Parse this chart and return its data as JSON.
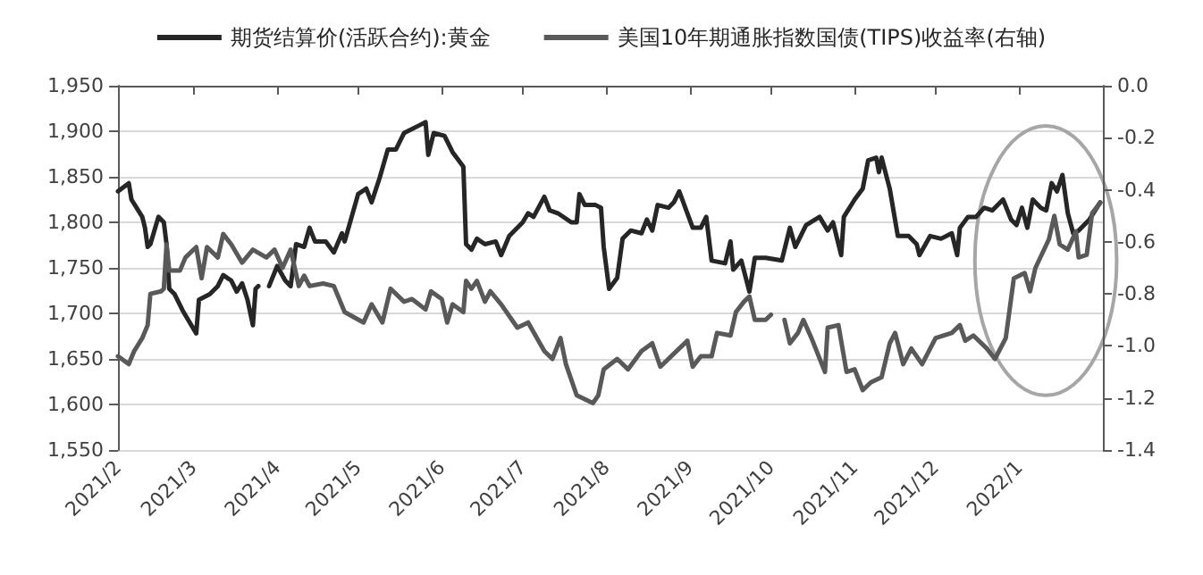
{
  "chart_data": {
    "type": "line",
    "series": [
      {
        "name": "期货结算价(活跃合约):黄金",
        "color": "#262626",
        "x": [
          "2021-02-01",
          "2021-02-05",
          "2021-02-06",
          "2021-02-10",
          "2021-02-11",
          "2021-02-12",
          "2021-02-13",
          "2021-02-16",
          "2021-02-18",
          "2021-02-19",
          "2021-02-20",
          "2021-02-22",
          "2021-02-25",
          "2021-03-02",
          "2021-03-03",
          "2021-03-07",
          "2021-03-10",
          "2021-03-12",
          "2021-03-15",
          "2021-03-17",
          "2021-03-19",
          "2021-03-21",
          "2021-03-23",
          "2021-03-24",
          "2021-03-25",
          "2021-03-27",
          "2021-03-29",
          "2021-04-01",
          "2021-04-04",
          "2021-04-06",
          "2021-04-08",
          "2021-04-11",
          "2021-04-13",
          "2021-04-15",
          "2021-04-19",
          "2021-04-22",
          "2021-04-25",
          "2021-04-26",
          "2021-05-01",
          "2021-05-04",
          "2021-05-06",
          "2021-05-09",
          "2021-05-12",
          "2021-05-15",
          "2021-05-18",
          "2021-05-24",
          "2021-05-26",
          "2021-05-27",
          "2021-05-29",
          "2021-06-02",
          "2021-06-05",
          "2021-06-09",
          "2021-06-10",
          "2021-06-12",
          "2021-06-14",
          "2021-06-17",
          "2021-06-21",
          "2021-06-23",
          "2021-06-26",
          "2021-07-01",
          "2021-07-03",
          "2021-07-05",
          "2021-07-09",
          "2021-07-11",
          "2021-07-14",
          "2021-07-19",
          "2021-07-21",
          "2021-07-22",
          "2021-07-24",
          "2021-07-28",
          "2021-07-30",
          "2021-07-31",
          "2021-08-02",
          "2021-08-05",
          "2021-08-07",
          "2021-08-10",
          "2021-08-14",
          "2021-08-16",
          "2021-08-18",
          "2021-08-20",
          "2021-08-24",
          "2021-08-26",
          "2021-08-28",
          "2021-08-31",
          "2021-09-02",
          "2021-09-05",
          "2021-09-07",
          "2021-09-09",
          "2021-09-14",
          "2021-09-16",
          "2021-09-17",
          "2021-09-20",
          "2021-09-23",
          "2021-09-25",
          "2021-09-29",
          "2021-10-05",
          "2021-10-08",
          "2021-10-10",
          "2021-10-14",
          "2021-10-19",
          "2021-10-22",
          "2021-10-24",
          "2021-10-27",
          "2021-10-28",
          "2021-11-01",
          "2021-11-04",
          "2021-11-06",
          "2021-11-09",
          "2021-11-10",
          "2021-11-11",
          "2021-11-14",
          "2021-11-17",
          "2021-11-21",
          "2021-11-24",
          "2021-11-25",
          "2021-11-29",
          "2021-12-03",
          "2021-12-07",
          "2021-12-09",
          "2021-12-10",
          "2021-12-13",
          "2021-12-16",
          "2021-12-19",
          "2021-12-22",
          "2021-12-26",
          "2021-12-29",
          "2021-12-31",
          "2022-01-02",
          "2022-01-04",
          "2022-01-06",
          "2022-01-09",
          "2022-01-11",
          "2022-01-13",
          "2022-01-15",
          "2022-01-17",
          "2022-01-19",
          "2022-01-21",
          "2022-01-23",
          "2022-01-27",
          "2022-01-31"
        ],
        "values": [
          1834,
          1843,
          1825,
          1806,
          1794,
          1773,
          1776,
          1806,
          1800,
          1776,
          1727,
          1721,
          1703,
          1678,
          1715,
          1721,
          1730,
          1742,
          1736,
          1724,
          1733,
          1715,
          1687,
          1727,
          1730,
          null,
          1730,
          1752,
          1736,
          1730,
          1776,
          1773,
          1794,
          1779,
          1779,
          1767,
          1788,
          1779,
          1831,
          1837,
          1822,
          1849,
          1880,
          1880,
          1898,
          1907,
          1910,
          1874,
          1898,
          1895,
          1877,
          1861,
          1776,
          1770,
          1782,
          1776,
          1779,
          1764,
          1785,
          1800,
          1810,
          1806,
          1828,
          1813,
          1810,
          1800,
          1800,
          1831,
          1819,
          1819,
          1816,
          1773,
          1727,
          1739,
          1782,
          1791,
          1788,
          1803,
          1791,
          1819,
          1816,
          1822,
          1834,
          1810,
          1794,
          1794,
          1806,
          1758,
          1755,
          1779,
          1748,
          1758,
          1724,
          1761,
          1761,
          1758,
          1794,
          1773,
          1797,
          1806,
          1791,
          1800,
          1764,
          1806,
          1825,
          1837,
          1868,
          1871,
          1855,
          1871,
          1837,
          1785,
          1785,
          1776,
          1764,
          1785,
          1782,
          1788,
          1764,
          1794,
          1806,
          1806,
          1816,
          1813,
          1825,
          1803,
          1797,
          1816,
          1794,
          1825,
          1816,
          1813,
          1843,
          1834,
          1852,
          1810,
          1788,
          1791,
          1803,
          1822
        ]
      },
      {
        "name": "美国10年期通胀指数国债(TIPS)收益率(右轴)",
        "color": "#595959",
        "axis": "y2",
        "x": [
          "2021-02-01",
          "2021-02-05",
          "2021-02-07",
          "2021-02-10",
          "2021-02-12",
          "2021-02-13",
          "2021-02-17",
          "2021-02-18",
          "2021-02-19",
          "2021-02-20",
          "2021-02-24",
          "2021-02-26",
          "2021-03-02",
          "2021-03-04",
          "2021-03-06",
          "2021-03-10",
          "2021-03-12",
          "2021-03-15",
          "2021-03-19",
          "2021-03-23",
          "2021-03-28",
          "2021-03-31",
          "2021-04-03",
          "2021-04-06",
          "2021-04-09",
          "2021-04-11",
          "2021-04-13",
          "2021-04-18",
          "2021-04-22",
          "2021-04-26",
          "2021-05-03",
          "2021-05-06",
          "2021-05-10",
          "2021-05-13",
          "2021-05-18",
          "2021-05-21",
          "2021-05-26",
          "2021-05-28",
          "2021-06-01",
          "2021-06-03",
          "2021-06-05",
          "2021-06-09",
          "2021-06-10",
          "2021-06-12",
          "2021-06-14",
          "2021-06-17",
          "2021-06-19",
          "2021-06-23",
          "2021-06-29",
          "2021-07-03",
          "2021-07-09",
          "2021-07-12",
          "2021-07-15",
          "2021-07-17",
          "2021-07-21",
          "2021-07-27",
          "2021-07-29",
          "2021-07-31",
          "2021-08-05",
          "2021-08-09",
          "2021-08-14",
          "2021-08-18",
          "2021-08-21",
          "2021-08-26",
          "2021-08-31",
          "2021-09-02",
          "2021-09-05",
          "2021-09-09",
          "2021-09-11",
          "2021-09-16",
          "2021-09-18",
          "2021-09-21",
          "2021-09-23",
          "2021-09-25",
          "2021-09-29",
          "2021-10-01",
          "2021-10-03",
          "2021-10-06",
          "2021-10-08",
          "2021-10-11",
          "2021-10-13",
          "2021-10-16",
          "2021-10-21",
          "2021-10-22",
          "2021-10-26",
          "2021-10-29",
          "2021-11-01",
          "2021-11-04",
          "2021-11-07",
          "2021-11-11",
          "2021-11-14",
          "2021-11-16",
          "2021-11-19",
          "2021-11-22",
          "2021-11-26",
          "2021-12-01",
          "2021-12-07",
          "2021-12-10",
          "2021-12-12",
          "2021-12-15",
          "2021-12-20",
          "2021-12-23",
          "2021-12-27",
          "2021-12-30",
          "2022-01-03",
          "2022-01-05",
          "2022-01-07",
          "2022-01-12",
          "2022-01-14",
          "2022-01-16",
          "2022-01-19",
          "2022-01-22",
          "2022-01-23",
          "2022-01-26",
          "2022-01-28",
          "2022-01-31"
        ],
        "values": [
          -1.04,
          -1.07,
          -1.02,
          -0.97,
          -0.92,
          -0.8,
          -0.79,
          -0.78,
          -0.61,
          -0.71,
          -0.71,
          -0.66,
          -0.62,
          -0.74,
          -0.62,
          -0.66,
          -0.57,
          -0.61,
          -0.68,
          -0.63,
          -0.66,
          -0.63,
          -0.7,
          -0.63,
          -0.77,
          -0.73,
          -0.77,
          -0.76,
          -0.77,
          -0.87,
          -0.91,
          -0.84,
          -0.91,
          -0.78,
          -0.83,
          -0.82,
          -0.86,
          -0.79,
          -0.82,
          -0.91,
          -0.84,
          -0.87,
          -0.75,
          -0.78,
          -0.75,
          -0.83,
          -0.79,
          -0.84,
          -0.93,
          -0.91,
          -1.02,
          -1.05,
          -0.97,
          -1.07,
          -1.19,
          -1.22,
          -1.19,
          -1.09,
          -1.05,
          -1.09,
          -1.02,
          -0.99,
          -1.08,
          -1.03,
          -0.98,
          -1.08,
          -1.04,
          -1.04,
          -0.95,
          -0.96,
          -0.87,
          -0.83,
          -0.81,
          -0.9,
          -0.9,
          -0.88,
          null,
          -0.9,
          -0.99,
          -0.95,
          -0.9,
          -0.97,
          -1.1,
          -0.93,
          -0.92,
          -1.1,
          -1.09,
          -1.17,
          -1.14,
          -1.12,
          -0.99,
          -0.95,
          -1.07,
          -1.01,
          -1.07,
          -0.97,
          -0.95,
          -0.92,
          -0.98,
          -0.96,
          -1.01,
          -1.05,
          -0.97,
          -0.74,
          -0.72,
          -0.79,
          -0.7,
          -0.59,
          -0.5,
          -0.61,
          -0.63,
          -0.56,
          -0.66,
          -0.65,
          -0.49,
          -0.45
        ]
      }
    ],
    "xlim": [
      "2021-02-01",
      "2022-02-01"
    ],
    "xticks": [
      {
        "value": "2021-02-01",
        "label": "2021/2"
      },
      {
        "value": "2021-03-01",
        "label": "2021/3"
      },
      {
        "value": "2021-04-01",
        "label": "2021/4"
      },
      {
        "value": "2021-05-01",
        "label": "2021/5"
      },
      {
        "value": "2021-06-01",
        "label": "2021/6"
      },
      {
        "value": "2021-07-01",
        "label": "2021/7"
      },
      {
        "value": "2021-08-01",
        "label": "2021/8"
      },
      {
        "value": "2021-09-01",
        "label": "2021/9"
      },
      {
        "value": "2021-10-01",
        "label": "2021/10"
      },
      {
        "value": "2021-11-01",
        "label": "2021/11"
      },
      {
        "value": "2021-12-01",
        "label": "2021/12"
      },
      {
        "value": "2022-01-01",
        "label": "2022/1"
      }
    ],
    "ylim": [
      1550,
      1950
    ],
    "yticks": [
      {
        "value": 1550,
        "label": "1,550"
      },
      {
        "value": 1600,
        "label": "1,600"
      },
      {
        "value": 1650,
        "label": "1,650"
      },
      {
        "value": 1700,
        "label": "1,700"
      },
      {
        "value": 1750,
        "label": "1,750"
      },
      {
        "value": 1800,
        "label": "1,800"
      },
      {
        "value": 1850,
        "label": "1,850"
      },
      {
        "value": 1900,
        "label": "1,900"
      },
      {
        "value": 1950,
        "label": "1,950"
      }
    ],
    "y2lim": [
      -1.4,
      0
    ],
    "y2ticks": [
      {
        "value": -1.4,
        "label": "-1.4"
      },
      {
        "value": -1.2,
        "label": "-1.2"
      },
      {
        "value": -1.0,
        "label": "-1.0"
      },
      {
        "value": -0.8,
        "label": "-0.8"
      },
      {
        "value": -0.6,
        "label": "-0.6"
      },
      {
        "value": -0.4,
        "label": "-0.4"
      },
      {
        "value": -0.2,
        "label": "-0.2"
      },
      {
        "value": 0,
        "label": "0.0"
      }
    ],
    "grid": "y",
    "legend": "top",
    "marker": "none",
    "line_style": "solid"
  }
}
